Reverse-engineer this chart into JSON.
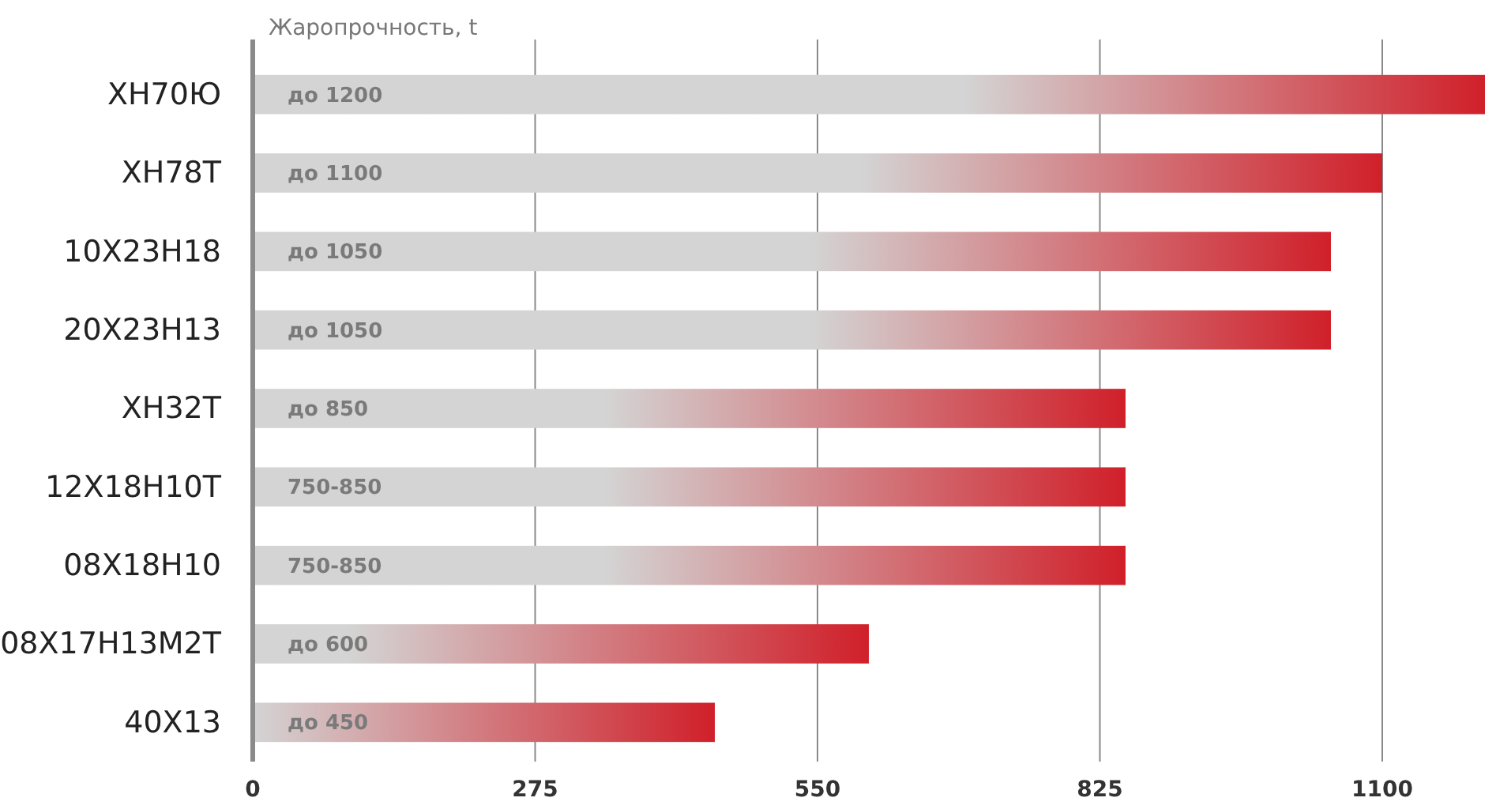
{
  "chart_data": {
    "type": "bar",
    "orientation": "horizontal",
    "xlabel": "Жаропрочность, t",
    "categories": [
      "ХН70Ю",
      "ХН78Т",
      "10Х23Н18",
      "20Х23Н13",
      "ХН32Т",
      "12Х18Н10Т",
      "08Х18Н10",
      "08Х17Н13М2Т",
      "40Х13"
    ],
    "values": [
      1200,
      1100,
      1050,
      1050,
      850,
      850,
      850,
      600,
      450
    ],
    "value_labels": [
      "до 1200",
      "до 1100",
      "до 1050",
      "до 1050",
      "до 850",
      "750-850",
      "750-850",
      "до 600",
      "до 450"
    ],
    "color": "#d0202a",
    "xlim": [
      0,
      1200
    ],
    "xticks": [
      0,
      275,
      550,
      825,
      1100
    ],
    "grid": "x"
  }
}
